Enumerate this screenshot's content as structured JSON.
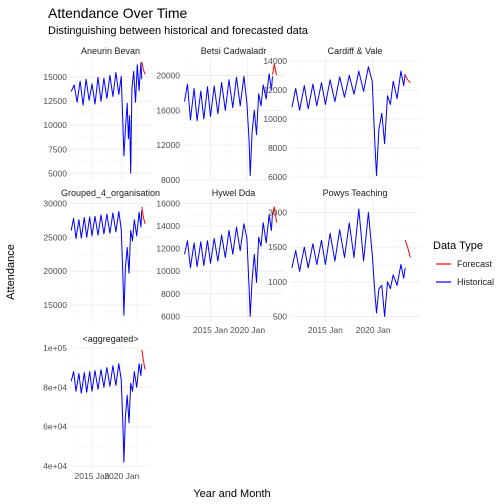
{
  "chart_data": {
    "type": "line",
    "title": "Attendance Over Time",
    "subtitle": "Distinguishing between historical and forecasted data",
    "xlabel": "Year and Month",
    "ylabel": "Attendance",
    "x_tick_labels": [
      "2015 Jan",
      "2020 Jan"
    ],
    "x_tick_years": [
      2015,
      2020
    ],
    "xlim": [
      2011.3,
      2024.9
    ],
    "grid": true,
    "legend": {
      "title": "Data Type",
      "placement": "right",
      "entries": [
        {
          "name": "Forecast",
          "color": "#ff0000"
        },
        {
          "name": "Historical",
          "color": "#0000ff"
        }
      ]
    },
    "colors": {
      "Historical": "#0000ff",
      "Forecast": "#ff0000",
      "grid": "#ebebeb",
      "text": "#4d4d4d"
    },
    "panels": [
      {
        "name": "Aneurin Bevan",
        "ylim": [
          4300,
          17000
        ],
        "y_ticks": [
          5000,
          7500,
          10000,
          12500,
          15000
        ],
        "y_tick_labels": [
          "5000",
          "7500",
          "10000",
          "12500",
          "15000"
        ],
        "historical": [
          [
            2011.5,
            13500
          ],
          [
            2012.0,
            14200
          ],
          [
            2012.5,
            12400
          ],
          [
            2013.0,
            14600
          ],
          [
            2013.5,
            12100
          ],
          [
            2014.0,
            14800
          ],
          [
            2014.5,
            12600
          ],
          [
            2015.0,
            14300
          ],
          [
            2015.5,
            12200
          ],
          [
            2016.0,
            15000
          ],
          [
            2016.5,
            12500
          ],
          [
            2017.0,
            14900
          ],
          [
            2017.5,
            12800
          ],
          [
            2018.0,
            15200
          ],
          [
            2018.5,
            13000
          ],
          [
            2019.0,
            15500
          ],
          [
            2019.5,
            13200
          ],
          [
            2019.9,
            15100
          ],
          [
            2020.2,
            9800
          ],
          [
            2020.35,
            6800
          ],
          [
            2020.6,
            9600
          ],
          [
            2020.9,
            12300
          ],
          [
            2021.1,
            8600
          ],
          [
            2021.3,
            11000
          ],
          [
            2021.5,
            5000
          ],
          [
            2021.7,
            13800
          ],
          [
            2022.0,
            15600
          ],
          [
            2022.3,
            12400
          ],
          [
            2022.6,
            16300
          ],
          [
            2022.9,
            13600
          ],
          [
            2023.2,
            16500
          ],
          [
            2023.35,
            14800
          ]
        ],
        "forecast": [
          [
            2023.35,
            16600
          ],
          [
            2023.6,
            15800
          ],
          [
            2023.9,
            15300
          ]
        ]
      },
      {
        "name": "Betsi Cadwaladr",
        "ylim": [
          8000,
          22000
        ],
        "y_ticks": [
          8000,
          12000,
          16000,
          20000
        ],
        "y_tick_labels": [
          "8000",
          "12000",
          "16000",
          "20000"
        ],
        "historical": [
          [
            2011.5,
            17000
          ],
          [
            2011.9,
            19000
          ],
          [
            2012.3,
            14900
          ],
          [
            2012.8,
            18500
          ],
          [
            2013.2,
            14800
          ],
          [
            2013.7,
            18200
          ],
          [
            2014.1,
            15000
          ],
          [
            2014.6,
            18700
          ],
          [
            2015.0,
            15300
          ],
          [
            2015.5,
            18800
          ],
          [
            2016.0,
            15600
          ],
          [
            2016.5,
            19200
          ],
          [
            2017.0,
            16000
          ],
          [
            2017.5,
            19500
          ],
          [
            2018.0,
            16300
          ],
          [
            2018.5,
            19800
          ],
          [
            2019.0,
            16500
          ],
          [
            2019.5,
            19900
          ],
          [
            2019.9,
            16800
          ],
          [
            2020.2,
            12500
          ],
          [
            2020.35,
            8500
          ],
          [
            2020.6,
            13500
          ],
          [
            2020.9,
            16000
          ],
          [
            2021.2,
            13200
          ],
          [
            2021.5,
            17900
          ],
          [
            2021.8,
            16500
          ],
          [
            2022.1,
            18900
          ],
          [
            2022.5,
            17300
          ],
          [
            2022.9,
            20200
          ],
          [
            2023.2,
            18300
          ],
          [
            2023.35,
            19900
          ]
        ],
        "forecast": [
          [
            2023.35,
            20100
          ],
          [
            2023.6,
            21300
          ],
          [
            2023.9,
            20000
          ]
        ]
      },
      {
        "name": "Cardiff & Vale",
        "ylim": [
          5800,
          14200
        ],
        "y_ticks": [
          6000,
          8000,
          10000,
          12000,
          14000
        ],
        "y_tick_labels": [
          "6000",
          "8000",
          "10000",
          "12000",
          "14000"
        ],
        "historical": [
          [
            2011.5,
            10800
          ],
          [
            2011.9,
            12100
          ],
          [
            2012.3,
            10600
          ],
          [
            2012.8,
            12300
          ],
          [
            2013.2,
            10700
          ],
          [
            2013.7,
            12400
          ],
          [
            2014.1,
            10900
          ],
          [
            2014.6,
            12500
          ],
          [
            2015.0,
            11000
          ],
          [
            2015.5,
            12700
          ],
          [
            2016.0,
            11200
          ],
          [
            2016.5,
            12900
          ],
          [
            2017.0,
            11500
          ],
          [
            2017.5,
            13000
          ],
          [
            2018.0,
            11700
          ],
          [
            2018.5,
            13300
          ],
          [
            2019.0,
            11900
          ],
          [
            2019.5,
            13600
          ],
          [
            2019.9,
            12600
          ],
          [
            2020.2,
            8000
          ],
          [
            2020.35,
            6100
          ],
          [
            2020.6,
            9300
          ],
          [
            2020.9,
            10400
          ],
          [
            2021.2,
            8300
          ],
          [
            2021.5,
            11600
          ],
          [
            2021.8,
            11000
          ],
          [
            2022.1,
            12600
          ],
          [
            2022.5,
            11400
          ],
          [
            2022.9,
            13300
          ],
          [
            2023.2,
            12300
          ],
          [
            2023.35,
            13100
          ]
        ],
        "forecast": [
          [
            2023.35,
            13000
          ],
          [
            2023.6,
            12700
          ],
          [
            2023.9,
            12500
          ]
        ]
      },
      {
        "name": "Grouped_4_organisation",
        "ylim": [
          12500,
          30500
        ],
        "y_ticks": [
          15000,
          20000,
          25000,
          30000
        ],
        "y_tick_labels": [
          "15000",
          "20000",
          "25000",
          "30000"
        ],
        "historical": [
          [
            2011.5,
            26000
          ],
          [
            2011.9,
            27800
          ],
          [
            2012.3,
            24800
          ],
          [
            2012.8,
            27600
          ],
          [
            2013.2,
            24900
          ],
          [
            2013.7,
            27900
          ],
          [
            2014.1,
            25000
          ],
          [
            2014.6,
            28000
          ],
          [
            2015.0,
            25200
          ],
          [
            2015.5,
            28100
          ],
          [
            2016.0,
            25300
          ],
          [
            2016.5,
            28300
          ],
          [
            2017.0,
            25500
          ],
          [
            2017.5,
            28400
          ],
          [
            2018.0,
            25600
          ],
          [
            2018.5,
            28600
          ],
          [
            2019.0,
            25800
          ],
          [
            2019.5,
            28800
          ],
          [
            2019.9,
            26200
          ],
          [
            2020.2,
            19000
          ],
          [
            2020.35,
            13500
          ],
          [
            2020.6,
            20500
          ],
          [
            2020.9,
            23500
          ],
          [
            2021.2,
            19700
          ],
          [
            2021.5,
            26000
          ],
          [
            2021.8,
            24500
          ],
          [
            2022.1,
            27600
          ],
          [
            2022.5,
            25200
          ],
          [
            2022.9,
            28700
          ],
          [
            2023.2,
            26500
          ],
          [
            2023.35,
            29000
          ]
        ],
        "forecast": [
          [
            2023.35,
            29500
          ],
          [
            2023.6,
            28000
          ],
          [
            2023.9,
            27000
          ]
        ]
      },
      {
        "name": "Hywel Dda",
        "ylim": [
          5500,
          16300
        ],
        "y_ticks": [
          6000,
          8000,
          10000,
          12000,
          14000,
          16000
        ],
        "y_tick_labels": [
          "6000",
          "8000",
          "10000",
          "12000",
          "14000",
          "16000"
        ],
        "historical": [
          [
            2011.5,
            11500
          ],
          [
            2011.9,
            12700
          ],
          [
            2012.3,
            10300
          ],
          [
            2012.8,
            12500
          ],
          [
            2013.2,
            10400
          ],
          [
            2013.7,
            12600
          ],
          [
            2014.1,
            10500
          ],
          [
            2014.6,
            12700
          ],
          [
            2015.0,
            10700
          ],
          [
            2015.5,
            12900
          ],
          [
            2016.0,
            10900
          ],
          [
            2016.5,
            13200
          ],
          [
            2017.0,
            11200
          ],
          [
            2017.5,
            13600
          ],
          [
            2018.0,
            11500
          ],
          [
            2018.5,
            13900
          ],
          [
            2019.0,
            11800
          ],
          [
            2019.5,
            14200
          ],
          [
            2019.9,
            12900
          ],
          [
            2020.2,
            8500
          ],
          [
            2020.35,
            6000
          ],
          [
            2020.6,
            9200
          ],
          [
            2020.9,
            11500
          ],
          [
            2021.2,
            9000
          ],
          [
            2021.5,
            13000
          ],
          [
            2021.8,
            12200
          ],
          [
            2022.1,
            14300
          ],
          [
            2022.5,
            12500
          ],
          [
            2022.9,
            15000
          ],
          [
            2023.2,
            13600
          ],
          [
            2023.35,
            15200
          ]
        ],
        "forecast": [
          [
            2023.35,
            15000
          ],
          [
            2023.6,
            15700
          ],
          [
            2023.9,
            14300
          ]
        ]
      },
      {
        "name": "Powys Teaching",
        "ylim": [
          420,
          2180
        ],
        "y_ticks": [
          500,
          1000,
          1500,
          2000
        ],
        "y_tick_labels": [
          "500",
          "1000",
          "1500",
          "2000"
        ],
        "historical": [
          [
            2011.5,
            1200
          ],
          [
            2011.9,
            1450
          ],
          [
            2012.3,
            1150
          ],
          [
            2012.8,
            1500
          ],
          [
            2013.2,
            1200
          ],
          [
            2013.7,
            1550
          ],
          [
            2014.1,
            1250
          ],
          [
            2014.6,
            1600
          ],
          [
            2015.0,
            1250
          ],
          [
            2015.5,
            1700
          ],
          [
            2016.0,
            1300
          ],
          [
            2016.5,
            1750
          ],
          [
            2017.0,
            1350
          ],
          [
            2017.5,
            1850
          ],
          [
            2018.0,
            1350
          ],
          [
            2018.5,
            2050
          ],
          [
            2019.0,
            1300
          ],
          [
            2019.5,
            2000
          ],
          [
            2019.9,
            1400
          ],
          [
            2020.2,
            800
          ],
          [
            2020.35,
            550
          ],
          [
            2020.6,
            900
          ],
          [
            2020.9,
            950
          ],
          [
            2021.2,
            500
          ],
          [
            2021.5,
            1000
          ],
          [
            2021.8,
            900
          ],
          [
            2022.1,
            1100
          ],
          [
            2022.5,
            950
          ],
          [
            2022.9,
            1250
          ],
          [
            2023.2,
            1050
          ],
          [
            2023.35,
            1200
          ]
        ],
        "forecast": [
          [
            2023.35,
            1600
          ],
          [
            2023.6,
            1500
          ],
          [
            2023.9,
            1350
          ]
        ]
      },
      {
        "name": "<aggregated>",
        "ylim": [
          39000,
          101000
        ],
        "y_ticks": [
          40000,
          60000,
          80000,
          100000
        ],
        "y_tick_labels": [
          "4e+04",
          "6e+04",
          "8e+04",
          "1e+05"
        ],
        "historical": [
          [
            2011.5,
            83000
          ],
          [
            2011.9,
            88000
          ],
          [
            2012.3,
            78000
          ],
          [
            2012.8,
            87000
          ],
          [
            2013.2,
            77000
          ],
          [
            2013.7,
            87500
          ],
          [
            2014.1,
            77500
          ],
          [
            2014.6,
            88000
          ],
          [
            2015.0,
            78000
          ],
          [
            2015.5,
            88500
          ],
          [
            2016.0,
            79000
          ],
          [
            2016.5,
            89000
          ],
          [
            2017.0,
            80000
          ],
          [
            2017.5,
            90000
          ],
          [
            2018.0,
            80500
          ],
          [
            2018.5,
            91000
          ],
          [
            2019.0,
            81000
          ],
          [
            2019.5,
            92000
          ],
          [
            2019.9,
            84000
          ],
          [
            2020.2,
            60000
          ],
          [
            2020.35,
            42000
          ],
          [
            2020.6,
            65000
          ],
          [
            2020.9,
            76000
          ],
          [
            2021.2,
            62000
          ],
          [
            2021.5,
            82000
          ],
          [
            2021.8,
            78000
          ],
          [
            2022.1,
            88000
          ],
          [
            2022.5,
            80000
          ],
          [
            2022.9,
            92000
          ],
          [
            2023.2,
            86000
          ],
          [
            2023.35,
            92000
          ]
        ],
        "forecast": [
          [
            2023.35,
            99000
          ],
          [
            2023.6,
            94000
          ],
          [
            2023.9,
            89000
          ]
        ]
      }
    ]
  }
}
